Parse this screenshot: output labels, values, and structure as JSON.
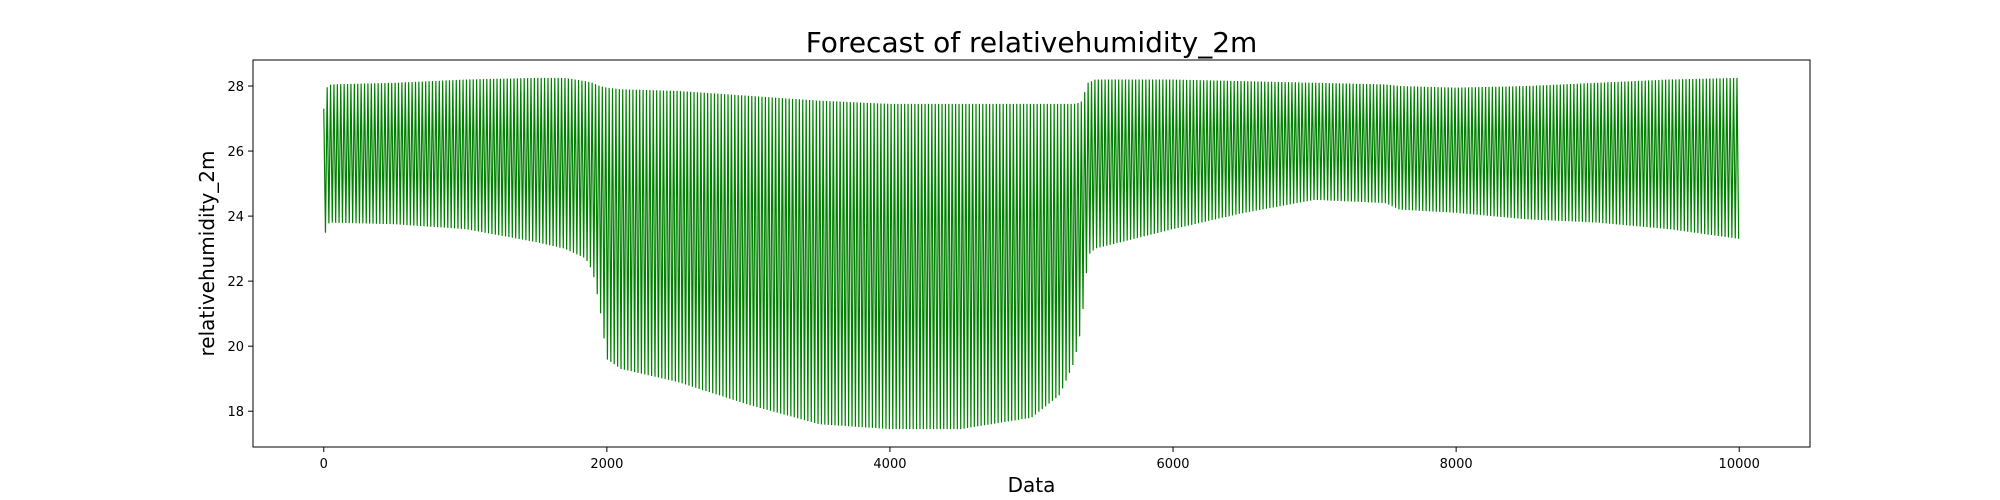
{
  "chart_data": {
    "type": "line",
    "title": "Forecast of relativehumidity_2m",
    "xlabel": "Data",
    "ylabel": "relativehumidity_2m",
    "xlim": [
      -500,
      10500
    ],
    "ylim": [
      16.9,
      28.8
    ],
    "xticks": [
      0,
      2000,
      4000,
      6000,
      8000,
      10000
    ],
    "yticks": [
      18,
      20,
      22,
      24,
      26,
      28
    ],
    "grid": false,
    "legend": "none",
    "series": [
      {
        "color": "#008000",
        "cycle_length": 24,
        "x_start": 0,
        "x_end": 9999,
        "envelope": {
          "x": [
            0,
            20,
            50,
            500,
            1000,
            1500,
            1700,
            1850,
            1900,
            1950,
            2000,
            2100,
            2500,
            3000,
            3500,
            4000,
            4500,
            5000,
            5200,
            5300,
            5350,
            5400,
            5450,
            6000,
            6500,
            7000,
            7500,
            7600,
            8000,
            8500,
            9000,
            9500,
            9999
          ],
          "upper": [
            27.3,
            27.95,
            28.05,
            28.1,
            28.2,
            28.25,
            28.25,
            28.15,
            28.1,
            28.0,
            27.95,
            27.9,
            27.85,
            27.7,
            27.55,
            27.45,
            27.45,
            27.45,
            27.45,
            27.45,
            27.5,
            28.1,
            28.2,
            28.2,
            28.15,
            28.1,
            28.05,
            28.0,
            27.95,
            28.0,
            28.1,
            28.2,
            28.25
          ],
          "lower": [
            23.1,
            23.75,
            23.8,
            23.75,
            23.6,
            23.2,
            23.0,
            22.7,
            22.3,
            21.2,
            19.6,
            19.3,
            18.9,
            18.2,
            17.6,
            17.45,
            17.45,
            17.8,
            18.5,
            19.5,
            20.5,
            22.8,
            23.0,
            23.6,
            24.1,
            24.5,
            24.4,
            24.2,
            24.1,
            23.9,
            23.8,
            23.6,
            23.3
          ]
        }
      }
    ]
  }
}
